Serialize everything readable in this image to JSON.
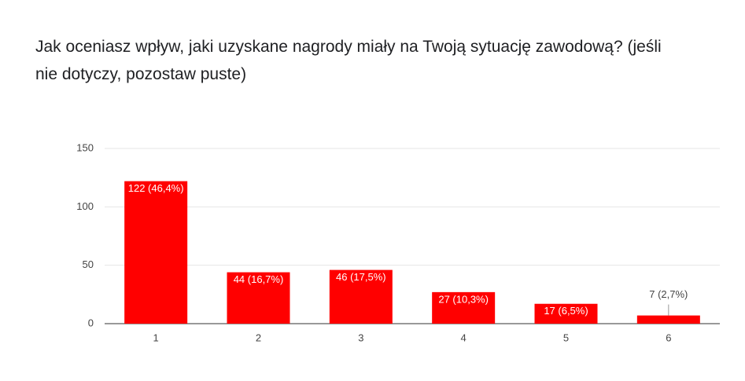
{
  "chart_data": {
    "type": "bar",
    "title": "Jak oceniasz wpływ, jaki uzyskane nagrody miały na Twoją sytuację zawodową? (jeśli nie dotyczy, pozostaw puste)",
    "categories": [
      "1",
      "2",
      "3",
      "4",
      "5",
      "6"
    ],
    "values": [
      122,
      44,
      46,
      27,
      17,
      7
    ],
    "value_labels": [
      "122 (46,4%)",
      "44 (16,7%)",
      "46 (17,5%)",
      "27 (10,3%)",
      "17 (6,5%)",
      "7 (2,7%)"
    ],
    "color": "#ff0000",
    "ylim": [
      0,
      150
    ],
    "yticks": [
      0,
      50,
      100,
      150
    ],
    "grid": true
  }
}
